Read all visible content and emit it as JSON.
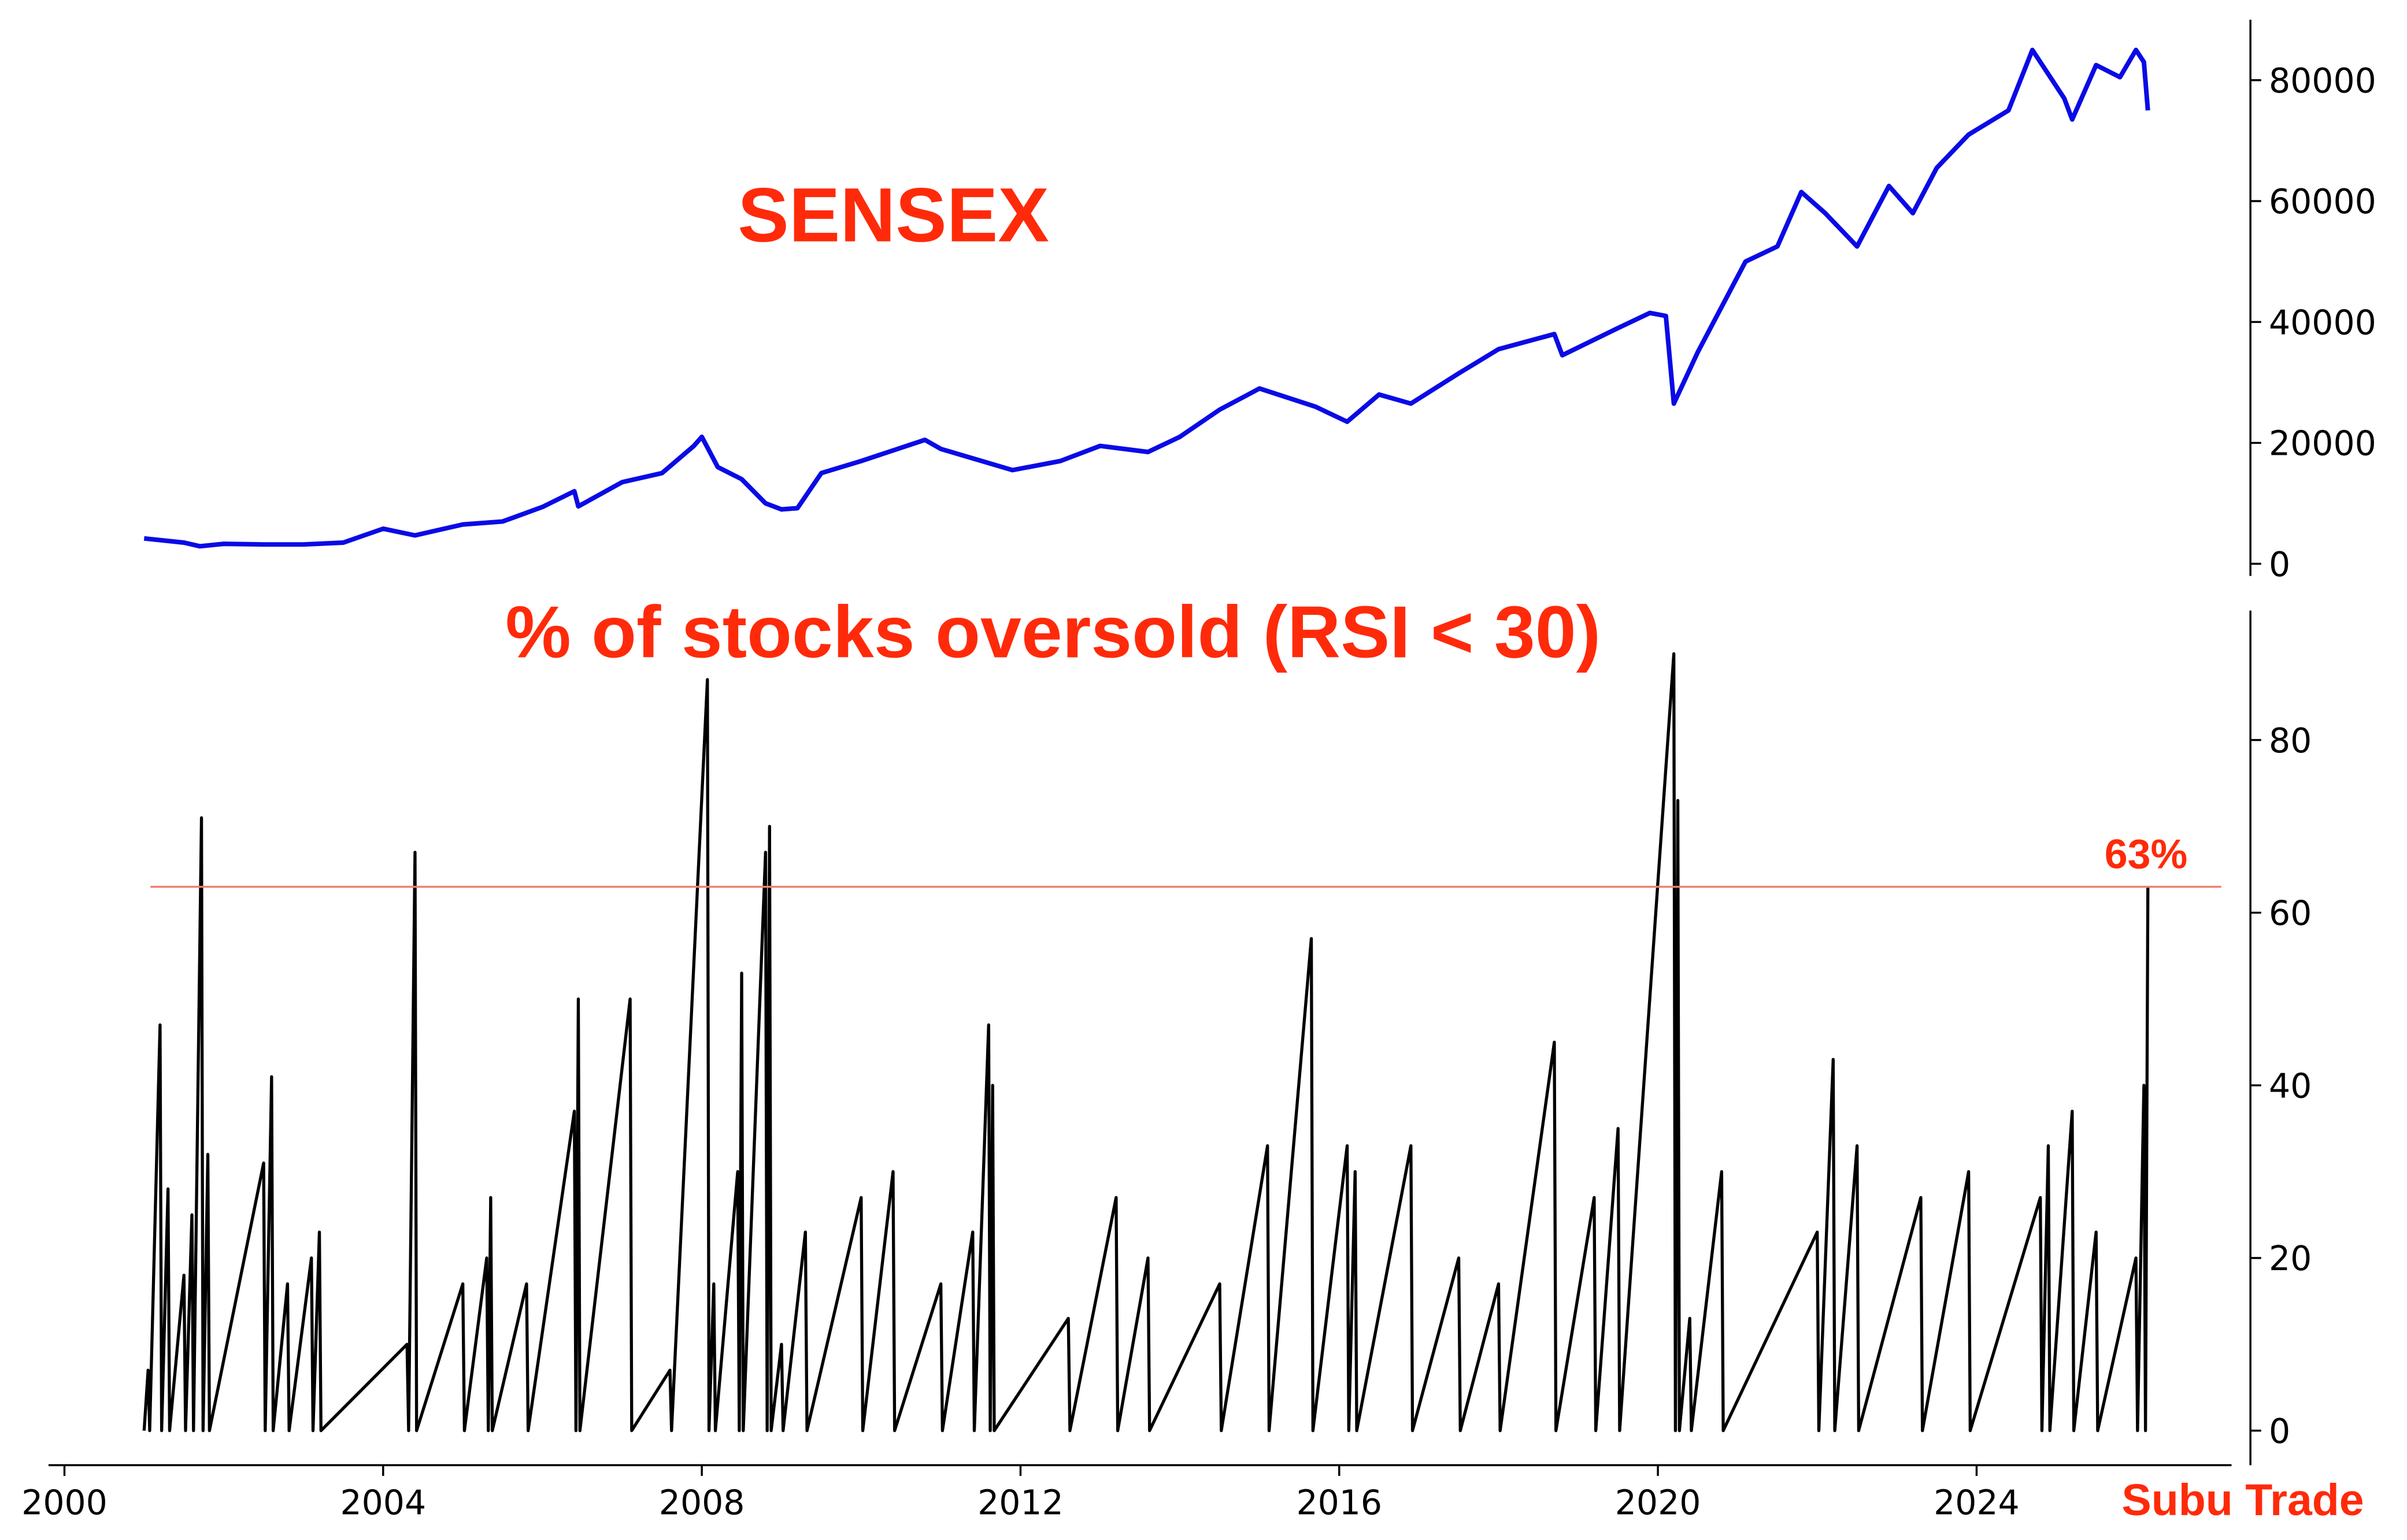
{
  "chart_data": [
    {
      "type": "line",
      "title": "SENSEX",
      "x": [
        2001.0,
        2001.5,
        2001.7,
        2002.0,
        2002.5,
        2003.0,
        2003.5,
        2004.0,
        2004.4,
        2005.0,
        2005.5,
        2006.0,
        2006.4,
        2006.45,
        2007.0,
        2007.5,
        2007.9,
        2008.0,
        2008.2,
        2008.5,
        2008.8,
        2009.0,
        2009.2,
        2009.5,
        2010.0,
        2010.8,
        2011.0,
        2011.9,
        2012.5,
        2013.0,
        2013.6,
        2014.0,
        2014.5,
        2015.0,
        2015.7,
        2016.1,
        2016.5,
        2016.9,
        2017.5,
        2018.0,
        2018.7,
        2018.8,
        2019.5,
        2019.9,
        2020.1,
        2020.2,
        2020.5,
        2020.9,
        2021.1,
        2021.5,
        2021.8,
        2022.1,
        2022.5,
        2022.9,
        2023.2,
        2023.5,
        2023.9,
        2024.4,
        2024.7,
        2025.1,
        2025.2,
        2025.5,
        2025.8,
        2026.0,
        2026.1,
        2026.15
      ],
      "series": [
        {
          "name": "SENSEX",
          "color": "#0a0ae6",
          "values": [
            4200,
            3500,
            2900,
            3300,
            3200,
            3200,
            3500,
            5800,
            4700,
            6500,
            7000,
            9400,
            12000,
            9500,
            13500,
            15000,
            19500,
            21000,
            16000,
            14000,
            10000,
            9000,
            9200,
            15000,
            17000,
            20500,
            19000,
            15500,
            17000,
            19500,
            18500,
            21000,
            25500,
            29000,
            26000,
            23500,
            28000,
            26500,
            31500,
            35500,
            38000,
            34500,
            39000,
            41500,
            41000,
            26500,
            35000,
            45000,
            50000,
            52500,
            61500,
            58000,
            52500,
            62500,
            58000,
            65500,
            71000,
            75000,
            85000,
            77000,
            73500,
            82500,
            80500,
            85000,
            83000,
            75000
          ]
        }
      ],
      "xlim": [
        1999.8,
        2027.2
      ],
      "ylim": [
        -2000,
        90000
      ],
      "yticks": [
        0,
        20000,
        40000,
        60000,
        80000
      ]
    },
    {
      "type": "line",
      "title": "% of stocks oversold (RSI < 30)",
      "x": [
        2001.0,
        2001.05,
        2001.07,
        2001.2,
        2001.22,
        2001.3,
        2001.32,
        2001.5,
        2001.52,
        2001.6,
        2001.62,
        2001.72,
        2001.74,
        2001.8,
        2001.82,
        2002.5,
        2002.52,
        2002.6,
        2002.62,
        2002.8,
        2002.82,
        2003.1,
        2003.12,
        2003.2,
        2003.22,
        2004.3,
        2004.32,
        2004.4,
        2004.42,
        2005.0,
        2005.02,
        2005.3,
        2005.32,
        2005.35,
        2005.37,
        2005.8,
        2005.82,
        2006.4,
        2006.42,
        2006.45,
        2006.47,
        2007.1,
        2007.12,
        2007.6,
        2007.62,
        2008.07,
        2008.09,
        2008.15,
        2008.17,
        2008.45,
        2008.47,
        2008.5,
        2008.52,
        2008.8,
        2008.82,
        2008.85,
        2008.87,
        2009.0,
        2009.02,
        2009.3,
        2009.32,
        2010.0,
        2010.02,
        2010.4,
        2010.42,
        2011.0,
        2011.02,
        2011.4,
        2011.42,
        2011.6,
        2011.62,
        2011.65,
        2011.67,
        2012.6,
        2012.62,
        2013.2,
        2013.22,
        2013.6,
        2013.62,
        2014.5,
        2014.52,
        2015.1,
        2015.12,
        2015.65,
        2015.67,
        2016.1,
        2016.12,
        2016.2,
        2016.22,
        2016.9,
        2016.92,
        2017.5,
        2017.52,
        2018.0,
        2018.02,
        2018.7,
        2018.72,
        2019.2,
        2019.22,
        2019.5,
        2019.52,
        2020.2,
        2020.22,
        2020.25,
        2020.27,
        2020.4,
        2020.42,
        2020.8,
        2020.82,
        2022.0,
        2022.02,
        2022.2,
        2022.22,
        2022.5,
        2022.52,
        2023.3,
        2023.32,
        2023.9,
        2023.92,
        2024.8,
        2024.82,
        2024.9,
        2024.92,
        2025.2,
        2025.22,
        2025.5,
        2025.52,
        2026.0,
        2026.02,
        2026.1,
        2026.12,
        2026.15
      ],
      "series": [
        {
          "name": "% of stocks oversold",
          "color": "#000000",
          "values": [
            0,
            7,
            0,
            47,
            0,
            28,
            0,
            18,
            0,
            25,
            0,
            71,
            0,
            32,
            0,
            31,
            0,
            41,
            0,
            17,
            0,
            20,
            0,
            23,
            0,
            10,
            0,
            67,
            0,
            17,
            0,
            20,
            0,
            27,
            0,
            17,
            0,
            37,
            0,
            50,
            0,
            50,
            0,
            7,
            0,
            87,
            0,
            17,
            0,
            30,
            0,
            53,
            0,
            67,
            0,
            70,
            0,
            10,
            0,
            23,
            0,
            27,
            0,
            30,
            0,
            17,
            0,
            23,
            0,
            47,
            0,
            40,
            0,
            13,
            0,
            27,
            0,
            20,
            0,
            17,
            0,
            33,
            0,
            57,
            0,
            33,
            0,
            30,
            0,
            33,
            0,
            20,
            0,
            17,
            0,
            45,
            0,
            27,
            0,
            35,
            0,
            90,
            0,
            73,
            0,
            13,
            0,
            30,
            0,
            23,
            0,
            43,
            0,
            33,
            0,
            27,
            0,
            30,
            0,
            27,
            0,
            33,
            0,
            37,
            0,
            23,
            0,
            20,
            0,
            40,
            0,
            63
          ]
        }
      ],
      "threshold": {
        "value": 63,
        "label": "63%",
        "color": "#f08070"
      },
      "xlim": [
        1999.8,
        2027.2
      ],
      "ylim": [
        -4,
        95
      ],
      "yticks": [
        0,
        20,
        40,
        60,
        80
      ],
      "xticks": [
        2000,
        2004,
        2008,
        2012,
        2016,
        2020,
        2024
      ],
      "watermark": "Subu Trade"
    }
  ]
}
